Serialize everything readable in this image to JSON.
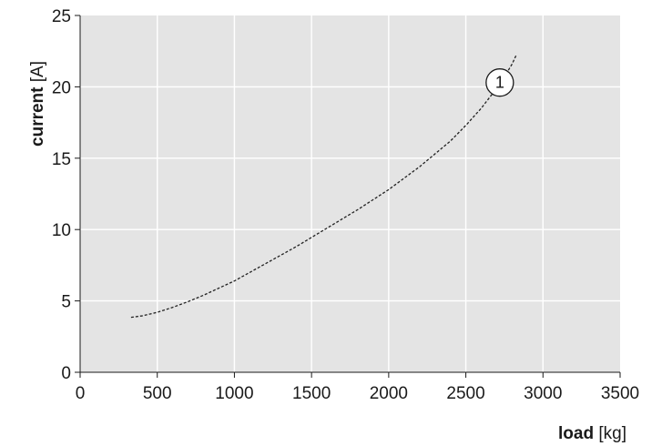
{
  "chart_data": {
    "type": "line",
    "xlabel": {
      "name": "load",
      "unit": "[kg]"
    },
    "ylabel": {
      "name": "current",
      "unit": "[A]"
    },
    "xlim": [
      0,
      3500
    ],
    "ylim": [
      0,
      25
    ],
    "xticks": [
      0,
      500,
      1000,
      1500,
      2000,
      2500,
      3000,
      3500
    ],
    "yticks": [
      0,
      5,
      10,
      15,
      20,
      25
    ],
    "grid": true,
    "series": [
      {
        "line_style": "dashed",
        "color": "#222222",
        "x": [
          330,
          400,
          500,
          600,
          700,
          800,
          900,
          1000,
          1200,
          1400,
          1600,
          1800,
          2000,
          2200,
          2400,
          2500,
          2600,
          2700,
          2750,
          2800,
          2830
        ],
        "y": [
          3.85,
          3.95,
          4.2,
          4.55,
          4.95,
          5.4,
          5.9,
          6.4,
          7.6,
          8.8,
          10.1,
          11.4,
          12.8,
          14.4,
          16.2,
          17.3,
          18.5,
          19.9,
          20.7,
          21.6,
          22.3
        ]
      }
    ],
    "annotations": [
      {
        "text": "1",
        "x": 2720,
        "y": 20.3
      }
    ]
  },
  "colors": {
    "plot_background": "#e4e4e4",
    "grid": "#ffffff",
    "axis": "#1a1a1a",
    "line": "#222222"
  }
}
